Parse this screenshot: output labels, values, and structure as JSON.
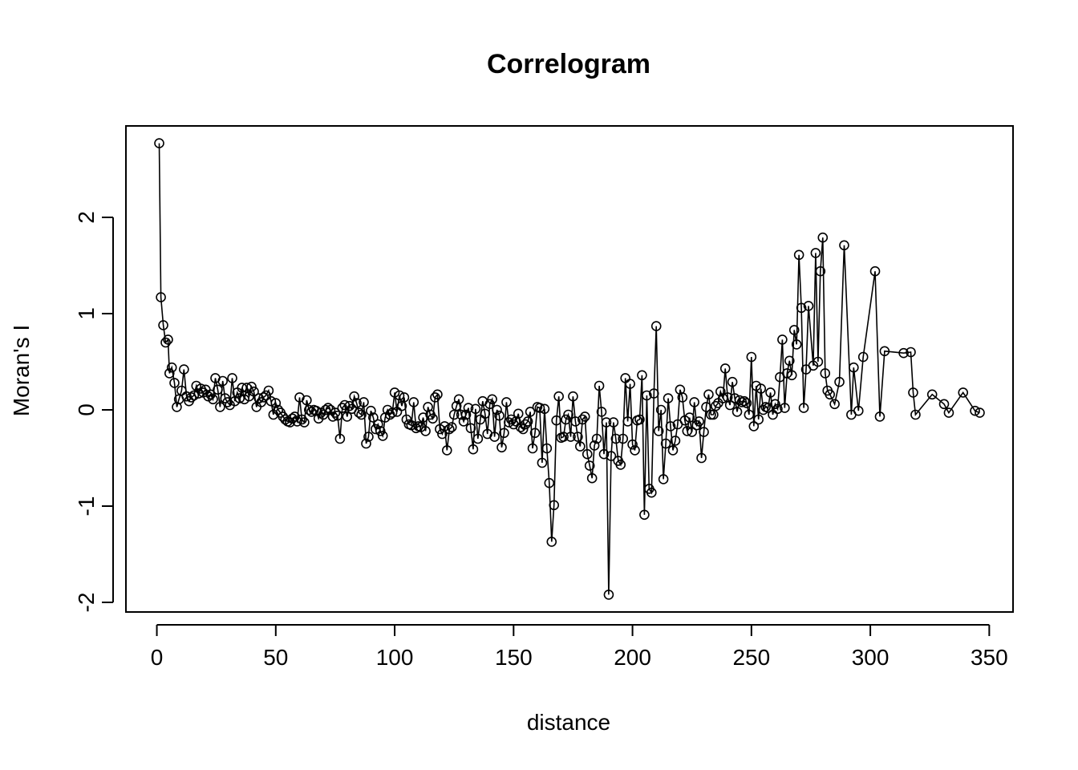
{
  "chart_data": {
    "type": "scatter",
    "title": "Correlogram",
    "xlabel": "distance",
    "ylabel": "Moran's I",
    "xlim": [
      -13,
      360
    ],
    "ylim": [
      -2.1,
      2.95
    ],
    "xticks": [
      0,
      50,
      100,
      150,
      200,
      250,
      300,
      350
    ],
    "yticks": [
      -2,
      -1,
      0,
      1,
      2
    ],
    "xtick_labels": [
      "0",
      "50",
      "100",
      "150",
      "200",
      "250",
      "300",
      "350"
    ],
    "ytick_labels": [
      "-2",
      "-1",
      "0",
      "1",
      "2"
    ],
    "grid": false,
    "point_style": "open circle joined by line",
    "series": [
      {
        "x": [
          1,
          1.7,
          2.7,
          3.7,
          4.7,
          5.3,
          6.3,
          7.4,
          8.4,
          9.3,
          10.4,
          11.4,
          12.5,
          13.5,
          14.5,
          15.6,
          16.6,
          17.6,
          18.5,
          19.5,
          20.5,
          21.6,
          22.6,
          23.6,
          24.6,
          25.6,
          26.6,
          27.7,
          28.7,
          29.7,
          30.7,
          31.7,
          32.8,
          33.8,
          34.8,
          35.8,
          36.8,
          37.8,
          38.8,
          39.8,
          40.8,
          41.9,
          42.9,
          43.9,
          44.9,
          45.9,
          47,
          48,
          49,
          50,
          51,
          52,
          53,
          54,
          55,
          56,
          57,
          58,
          59,
          60,
          61,
          62,
          63,
          64,
          65,
          66,
          67,
          68,
          69,
          70,
          71,
          72,
          73,
          74,
          75,
          76,
          77,
          78,
          79,
          80,
          81,
          82,
          83,
          84,
          85,
          86,
          87,
          88,
          89,
          90,
          91,
          92,
          93,
          94,
          95,
          96,
          97,
          98,
          99,
          100,
          101,
          102,
          103,
          104,
          105,
          106,
          107,
          108,
          109,
          110,
          111,
          112,
          113,
          114,
          115,
          116,
          117,
          118,
          119,
          120,
          121,
          122,
          123,
          124,
          125,
          126,
          127,
          128,
          129,
          130,
          131,
          132,
          133,
          134,
          135,
          136,
          137,
          138,
          139,
          140,
          141,
          142,
          143,
          144,
          145,
          146,
          147,
          148,
          149,
          150,
          151,
          152,
          153,
          154,
          155,
          156,
          157,
          158,
          159,
          160,
          161,
          162,
          163,
          164,
          165,
          166,
          167,
          168,
          169,
          170,
          171,
          172,
          173,
          174,
          175,
          176,
          177,
          178,
          179,
          180,
          181,
          182,
          183,
          184,
          185,
          186,
          187,
          188,
          189,
          190,
          191,
          192,
          193,
          194,
          195,
          196,
          197,
          198,
          199,
          200,
          201,
          202,
          203,
          204,
          205,
          206,
          207,
          208,
          209,
          210,
          211,
          212,
          213,
          214,
          215,
          216,
          217,
          218,
          219,
          220,
          221,
          222,
          223,
          224,
          225,
          226,
          227,
          228,
          229,
          230,
          231,
          232,
          233,
          234,
          235,
          236,
          237,
          238,
          239,
          240,
          241,
          242,
          243,
          244,
          245,
          246,
          247,
          248,
          249,
          250,
          251,
          252,
          253,
          254,
          255,
          256,
          257,
          258,
          259,
          260,
          261,
          262,
          263,
          264,
          265,
          266,
          267,
          268,
          269,
          270,
          271,
          272,
          273,
          274,
          276,
          277,
          278,
          279,
          280,
          281,
          282,
          283,
          285,
          287,
          289,
          292,
          293,
          295,
          297,
          302,
          304,
          306,
          314,
          317,
          318,
          319,
          326,
          331,
          333,
          339,
          344,
          346
        ],
        "y": [
          2.77,
          1.17,
          0.88,
          0.7,
          0.73,
          0.38,
          0.44,
          0.28,
          0.03,
          0.11,
          0.2,
          0.42,
          0.14,
          0.09,
          0.13,
          0.15,
          0.25,
          0.17,
          0.22,
          0.18,
          0.21,
          0.14,
          0.16,
          0.11,
          0.33,
          0.21,
          0.03,
          0.3,
          0.12,
          0.08,
          0.05,
          0.33,
          0.09,
          0.18,
          0.12,
          0.23,
          0.11,
          0.23,
          0.14,
          0.24,
          0.19,
          0.03,
          0.12,
          0.08,
          0.13,
          0.15,
          0.2,
          0.09,
          -0.05,
          0.07,
          0.0,
          -0.03,
          -0.07,
          -0.1,
          -0.12,
          -0.13,
          -0.09,
          -0.07,
          -0.12,
          0.13,
          -0.1,
          -0.13,
          0.1,
          0.0,
          -0.02,
          0.0,
          -0.01,
          -0.09,
          -0.03,
          -0.05,
          0.0,
          0.02,
          0.0,
          -0.07,
          -0.03,
          -0.06,
          -0.3,
          0.02,
          0.05,
          -0.07,
          0.04,
          0.01,
          0.14,
          0.07,
          -0.03,
          -0.05,
          0.08,
          -0.35,
          -0.28,
          -0.01,
          -0.08,
          -0.2,
          -0.15,
          -0.22,
          -0.27,
          -0.08,
          0.0,
          -0.05,
          -0.03,
          0.18,
          -0.02,
          0.15,
          0.04,
          0.13,
          -0.1,
          -0.15,
          -0.16,
          0.08,
          -0.19,
          -0.17,
          -0.18,
          -0.08,
          -0.22,
          0.03,
          -0.05,
          -0.09,
          0.13,
          0.16,
          -0.2,
          -0.25,
          -0.17,
          -0.42,
          -0.2,
          -0.18,
          -0.05,
          0.04,
          0.11,
          -0.05,
          -0.12,
          -0.05,
          0.02,
          -0.19,
          -0.41,
          0.01,
          -0.3,
          -0.1,
          0.09,
          -0.04,
          -0.25,
          0.06,
          0.11,
          -0.28,
          0.0,
          -0.06,
          -0.39,
          -0.24,
          0.08,
          -0.13,
          -0.1,
          -0.15,
          -0.12,
          -0.04,
          -0.18,
          -0.2,
          -0.15,
          -0.12,
          -0.02,
          -0.4,
          -0.24,
          0.03,
          0.02,
          -0.55,
          0.01,
          -0.4,
          -0.76,
          -1.37,
          -0.99,
          -0.11,
          0.14,
          -0.29,
          -0.28,
          -0.1,
          -0.05,
          -0.28,
          0.14,
          -0.12,
          -0.28,
          -0.38,
          -0.1,
          -0.07,
          -0.46,
          -0.58,
          -0.71,
          -0.37,
          -0.3,
          0.25,
          -0.02,
          -0.46,
          -0.13,
          -1.92,
          -0.48,
          -0.13,
          -0.3,
          -0.53,
          -0.57,
          -0.3,
          0.33,
          -0.12,
          0.27,
          -0.36,
          -0.42,
          -0.11,
          -0.1,
          0.36,
          -1.09,
          0.15,
          -0.82,
          -0.86,
          0.17,
          0.87,
          -0.22,
          0.0,
          -0.72,
          -0.35,
          0.12,
          -0.17,
          -0.42,
          -0.32,
          -0.15,
          0.21,
          0.13,
          -0.11,
          -0.22,
          -0.08,
          -0.23,
          0.08,
          -0.16,
          -0.12,
          -0.5,
          -0.23,
          0.03,
          0.16,
          -0.05,
          -0.05,
          0.04,
          0.07,
          0.19,
          0.12,
          0.43,
          0.13,
          0.05,
          0.29,
          0.12,
          -0.02,
          0.1,
          0.08,
          0.09,
          0.07,
          -0.05,
          0.55,
          -0.17,
          0.25,
          -0.1,
          0.22,
          0.0,
          0.03,
          0.02,
          0.18,
          -0.05,
          0.06,
          0.01,
          0.34,
          0.73,
          0.02,
          0.38,
          0.51,
          0.36,
          0.83,
          0.68,
          1.61,
          1.06,
          0.02,
          0.42,
          1.08,
          0.46,
          1.63,
          0.5,
          1.44,
          1.79,
          0.38,
          0.2,
          0.16,
          0.06,
          0.29,
          1.71,
          -0.05,
          0.44,
          -0.01,
          0.55,
          1.44,
          -0.07,
          0.61,
          0.59,
          0.6,
          0.18,
          -0.05,
          0.16,
          0.06,
          -0.03,
          0.18,
          -0.01,
          -0.03
        ]
      }
    ]
  }
}
